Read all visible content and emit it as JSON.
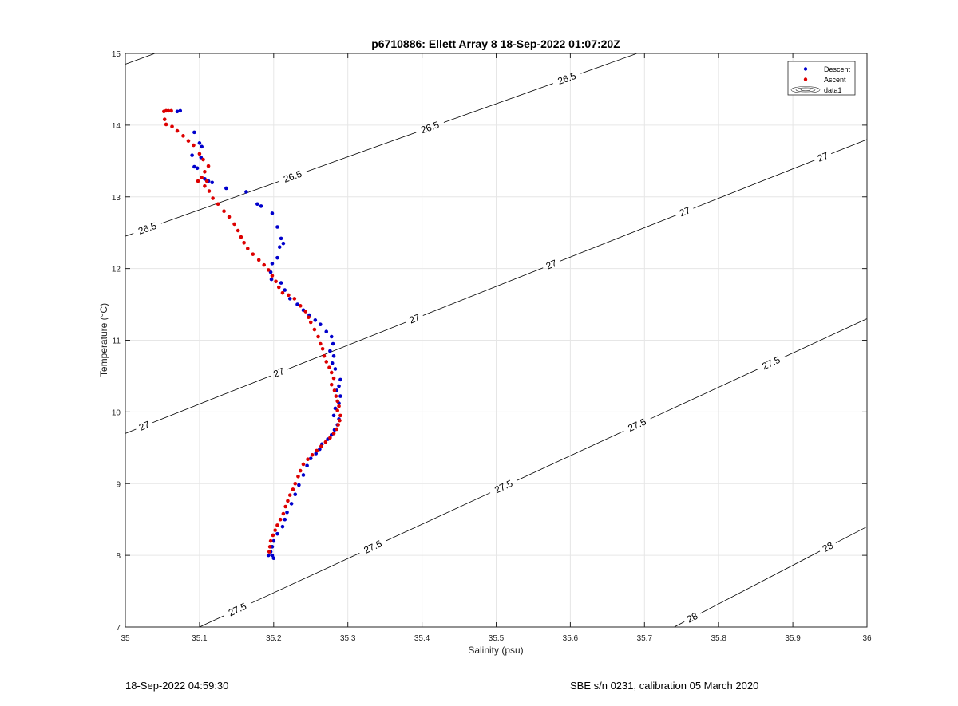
{
  "footer": {
    "left": "18-Sep-2022 04:59:30",
    "right": "SBE s/n 0231, calibration 05 March 2020"
  },
  "colors": {
    "descent": "#0000cc",
    "ascent": "#dd0000",
    "grid": "#e6e6e6",
    "contour": "#000000",
    "axis": "#262626"
  },
  "chart_data": {
    "type": "scatter",
    "title": "p6710886: Ellett Array 8 18-Sep-2022 01:07:20Z",
    "xlabel": "Salinity (psu)",
    "ylabel": "Temperature (°C)",
    "xlim": [
      35,
      36
    ],
    "ylim": [
      7,
      15
    ],
    "xticks": [
      "35",
      "35.1",
      "35.2",
      "35.3",
      "35.4",
      "35.5",
      "35.6",
      "35.7",
      "35.8",
      "35.9",
      "36"
    ],
    "yticks": [
      "7",
      "8",
      "9",
      "10",
      "11",
      "12",
      "13",
      "14",
      "15"
    ],
    "grid": true,
    "legend": {
      "position": "top-right",
      "entries": [
        "Descent",
        "Ascent",
        "data1"
      ]
    },
    "contours": [
      {
        "level": "26.5",
        "line": [
          [
            35.0,
            12.45
          ],
          [
            35.69,
            15.0
          ]
        ],
        "labels": [
          [
            35.03,
            12.55
          ],
          [
            35.225,
            13.3
          ],
          [
            35.41,
            13.99
          ],
          [
            35.595,
            14.66
          ]
        ]
      },
      {
        "level": "26.5",
        "line": [
          [
            35.0,
            14.85
          ],
          [
            35.04,
            15.0
          ]
        ],
        "labels": []
      },
      {
        "level": "27",
        "line": [
          [
            35.0,
            9.7
          ],
          [
            36.0,
            13.8
          ]
        ],
        "labels": [
          [
            35.025,
            9.82
          ],
          [
            35.205,
            10.6
          ],
          [
            35.39,
            11.3
          ],
          [
            35.575,
            12.04
          ],
          [
            35.755,
            12.78
          ],
          [
            35.94,
            13.57
          ]
        ]
      },
      {
        "level": "27.5",
        "line": [
          [
            35.1,
            7.0
          ],
          [
            36.0,
            11.3
          ]
        ],
        "labels": [
          [
            35.15,
            7.27
          ],
          [
            35.33,
            8.2
          ],
          [
            35.505,
            9.07
          ],
          [
            35.685,
            9.93
          ],
          [
            35.865,
            10.81
          ]
        ]
      },
      {
        "level": "28",
        "line": [
          [
            35.74,
            7.0
          ],
          [
            36.0,
            8.4
          ]
        ],
        "labels": [
          [
            35.765,
            7.12
          ],
          [
            35.95,
            8.06
          ]
        ]
      }
    ],
    "series": [
      {
        "name": "Descent",
        "x": [
          35.074,
          35.07,
          35.093,
          35.1,
          35.103,
          35.102,
          35.097,
          35.107,
          35.09,
          35.093,
          35.112,
          35.117,
          35.136,
          35.163,
          35.178,
          35.183,
          35.198,
          35.205,
          35.21,
          35.213,
          35.208,
          35.205,
          35.198,
          35.196,
          35.197,
          35.21,
          35.215,
          35.222,
          35.232,
          35.24,
          35.248,
          35.256,
          35.263,
          35.271,
          35.278,
          35.28,
          35.276,
          35.281,
          35.279,
          35.283,
          35.29,
          35.288,
          35.285,
          35.29,
          35.288,
          35.283,
          35.281,
          35.288,
          35.286,
          35.282,
          35.278,
          35.273,
          35.265,
          35.262,
          35.257,
          35.25,
          35.245,
          35.24,
          35.234,
          35.229,
          35.224,
          35.218,
          35.215,
          35.212,
          35.205,
          35.2,
          35.198,
          35.196,
          35.198,
          35.193,
          35.2
        ],
        "y": [
          14.2,
          14.19,
          13.9,
          13.75,
          13.7,
          13.55,
          13.4,
          13.25,
          13.58,
          13.42,
          13.22,
          13.2,
          13.12,
          13.07,
          12.9,
          12.87,
          12.77,
          12.58,
          12.42,
          12.35,
          12.3,
          12.15,
          12.07,
          11.95,
          11.85,
          11.8,
          11.7,
          11.58,
          11.5,
          11.42,
          11.35,
          11.28,
          11.22,
          11.12,
          11.05,
          10.95,
          10.85,
          10.78,
          10.68,
          10.6,
          10.45,
          10.36,
          10.3,
          10.22,
          10.12,
          10.05,
          9.95,
          9.9,
          9.82,
          9.75,
          9.68,
          9.62,
          9.55,
          9.48,
          9.42,
          9.35,
          9.25,
          9.12,
          8.98,
          8.85,
          8.72,
          8.6,
          8.5,
          8.4,
          8.3,
          8.2,
          8.12,
          8.05,
          8.0,
          8.0,
          7.96
        ]
      },
      {
        "name": "Ascent",
        "x": [
          35.052,
          35.055,
          35.058,
          35.062,
          35.053,
          35.055,
          35.063,
          35.07,
          35.078,
          35.085,
          35.092,
          35.1,
          35.105,
          35.112,
          35.107,
          35.098,
          35.103,
          35.11,
          35.107,
          35.113,
          35.118,
          35.125,
          35.133,
          35.14,
          35.147,
          35.152,
          35.156,
          35.16,
          35.165,
          35.172,
          35.18,
          35.187,
          35.193,
          35.198,
          35.203,
          35.207,
          35.212,
          35.22,
          35.228,
          35.236,
          35.243,
          35.247,
          35.25,
          35.255,
          35.26,
          35.263,
          35.266,
          35.268,
          35.271,
          35.275,
          35.278,
          35.281,
          35.278,
          35.282,
          35.284,
          35.286,
          35.288,
          35.286,
          35.29,
          35.289,
          35.287,
          35.285,
          35.281,
          35.276,
          35.27,
          35.264,
          35.258,
          35.252,
          35.246,
          35.24,
          35.236,
          35.233,
          35.229,
          35.226,
          35.222,
          35.219,
          35.216,
          35.213,
          35.209,
          35.205,
          35.202,
          35.199,
          35.196,
          35.195,
          35.194
        ],
        "y": [
          14.19,
          14.2,
          14.2,
          14.2,
          14.08,
          14.01,
          13.98,
          13.92,
          13.85,
          13.78,
          13.72,
          13.6,
          13.52,
          13.43,
          13.35,
          13.22,
          13.27,
          13.22,
          13.15,
          13.08,
          12.98,
          12.9,
          12.8,
          12.72,
          12.62,
          12.53,
          12.44,
          12.36,
          12.28,
          12.2,
          12.12,
          12.05,
          11.98,
          11.9,
          11.82,
          11.74,
          11.66,
          11.63,
          11.58,
          11.48,
          11.4,
          11.32,
          11.25,
          11.15,
          11.05,
          10.95,
          10.88,
          10.78,
          10.7,
          10.62,
          10.55,
          10.47,
          10.38,
          10.3,
          10.22,
          10.15,
          10.08,
          10.02,
          9.95,
          9.88,
          9.82,
          9.76,
          9.7,
          9.64,
          9.58,
          9.52,
          9.46,
          9.4,
          9.34,
          9.27,
          9.18,
          9.1,
          9.0,
          8.92,
          8.84,
          8.76,
          8.68,
          8.58,
          8.5,
          8.42,
          8.35,
          8.28,
          8.2,
          8.12,
          8.05
        ]
      }
    ]
  }
}
